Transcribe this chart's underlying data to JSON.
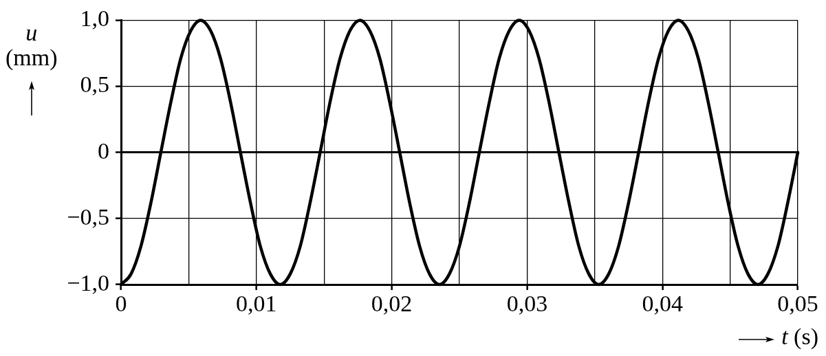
{
  "chart_data": {
    "type": "line",
    "xlabel": "t (s)",
    "ylabel": "u (mm)",
    "x": [
      0,
      0.00074,
      0.00147,
      0.00221,
      0.00294,
      0.00368,
      0.00441,
      0.00515,
      0.00588,
      0.00662,
      0.00735,
      0.00809,
      0.00882,
      0.00956,
      0.01029,
      0.01103,
      0.01176,
      0.0125,
      0.01324,
      0.01397,
      0.01471,
      0.01544,
      0.01618,
      0.01691,
      0.01765,
      0.01838,
      0.01912,
      0.01985,
      0.02059,
      0.02132,
      0.02206,
      0.02279,
      0.02353,
      0.02426,
      0.025,
      0.02574,
      0.02647,
      0.02721,
      0.02794,
      0.02868,
      0.02941,
      0.03015,
      0.03088,
      0.03162,
      0.03235,
      0.03309,
      0.03382,
      0.03456,
      0.03529,
      0.03603,
      0.03676,
      0.0375,
      0.03824,
      0.03897,
      0.03971,
      0.04044,
      0.04118,
      0.04191,
      0.04265,
      0.04338,
      0.04412,
      0.04485,
      0.04559,
      0.04632,
      0.04706,
      0.04779,
      0.04853,
      0.04926,
      0.05
    ],
    "values": [
      -1,
      -0.92,
      -0.71,
      -0.38,
      0,
      0.38,
      0.71,
      0.92,
      1,
      0.92,
      0.71,
      0.38,
      0,
      -0.38,
      -0.71,
      -0.92,
      -1,
      -0.92,
      -0.71,
      -0.38,
      0,
      0.38,
      0.71,
      0.92,
      1,
      0.92,
      0.71,
      0.38,
      0,
      -0.38,
      -0.71,
      -0.92,
      -1,
      -0.92,
      -0.71,
      -0.38,
      0,
      0.38,
      0.71,
      0.92,
      1,
      0.92,
      0.71,
      0.38,
      0,
      -0.38,
      -0.71,
      -0.92,
      -1,
      -0.92,
      -0.71,
      -0.38,
      0,
      0.38,
      0.71,
      0.92,
      1,
      0.92,
      0.71,
      0.38,
      0,
      -0.38,
      -0.71,
      -0.92,
      -1,
      -0.92,
      -0.71,
      -0.38,
      0
    ],
    "color": "#000000",
    "line_style": "solid",
    "grid": true,
    "xlim": [
      0,
      0.05
    ],
    "xticks": [
      0,
      {
        "value": 0.005,
        "label": null
      },
      {
        "value": 0.01,
        "label": "0,01"
      },
      {
        "value": 0.015,
        "label": null
      },
      {
        "value": 0.02,
        "label": "0,02"
      },
      {
        "value": 0.025,
        "label": null
      },
      {
        "value": 0.03,
        "label": "0,03"
      },
      {
        "value": 0.035,
        "label": null
      },
      {
        "value": 0.04,
        "label": "0,04"
      },
      {
        "value": 0.045,
        "label": null
      },
      {
        "value": 0.05,
        "label": "0,05"
      }
    ],
    "ylim": [
      -1,
      1
    ],
    "yticks": [
      {
        "value": -1,
        "label": "−1,0"
      },
      {
        "value": -0.5,
        "label": "−0,5"
      },
      0,
      {
        "value": 0.5,
        "label": "0,5"
      },
      {
        "value": 1,
        "label": "1,0"
      }
    ]
  }
}
